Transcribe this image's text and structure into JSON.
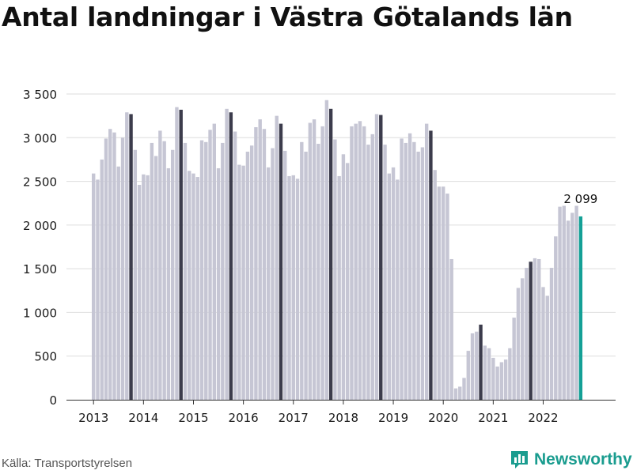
{
  "title": "Antal landningar i Västra Götalands län",
  "source": "Källa: Transportstyrelsen",
  "brand": {
    "name": "Newsworthy",
    "icon": "bar-chart-logo-icon"
  },
  "colors": {
    "bar": "#c6c6d4",
    "highlight": "#3c3c4c",
    "latest": "#14a096",
    "brand": "#1a9c8f"
  },
  "chart_data": {
    "type": "bar",
    "title": "Antal landningar i Västra Götalands län",
    "xlabel": "",
    "ylabel": "",
    "ylim": [
      0,
      3500
    ],
    "yticks": [
      0,
      500,
      1000,
      1500,
      2000,
      2500,
      3000,
      3500
    ],
    "ytick_labels": [
      "0",
      "500",
      "1 000",
      "1 500",
      "2 000",
      "2 500",
      "3 000",
      "3 500"
    ],
    "xtick_labels": [
      "2013",
      "2014",
      "2015",
      "2016",
      "2017",
      "2018",
      "2019",
      "2020",
      "2021",
      "2022"
    ],
    "grid": "horizontal",
    "start": "2013-01",
    "highlight_month": 10,
    "latest_label": "2 099",
    "values": [
      2590,
      2520,
      2750,
      2990,
      3100,
      3060,
      2670,
      3000,
      3290,
      3270,
      2860,
      2460,
      2580,
      2570,
      2940,
      2790,
      3080,
      2960,
      2650,
      2860,
      3350,
      3320,
      2940,
      2620,
      2590,
      2550,
      2970,
      2950,
      3090,
      3160,
      2650,
      2940,
      3330,
      3290,
      3070,
      2690,
      2680,
      2840,
      2910,
      3120,
      3210,
      3100,
      2660,
      2880,
      3250,
      3160,
      2850,
      2560,
      2570,
      2530,
      2950,
      2840,
      3170,
      3210,
      2930,
      3130,
      3430,
      3330,
      2980,
      2560,
      2810,
      2710,
      3130,
      3160,
      3190,
      3130,
      2920,
      3040,
      3270,
      3260,
      2920,
      2590,
      2660,
      2520,
      2990,
      2940,
      3050,
      2950,
      2840,
      2890,
      3160,
      3080,
      2630,
      2440,
      2440,
      2360,
      1610,
      130,
      150,
      250,
      560,
      760,
      780,
      860,
      620,
      590,
      480,
      380,
      430,
      460,
      590,
      940,
      1280,
      1390,
      1510,
      1580,
      1620,
      1610,
      1290,
      1190,
      1510,
      1870,
      2210,
      2220,
      2050,
      2140,
      2220,
      2099
    ]
  }
}
